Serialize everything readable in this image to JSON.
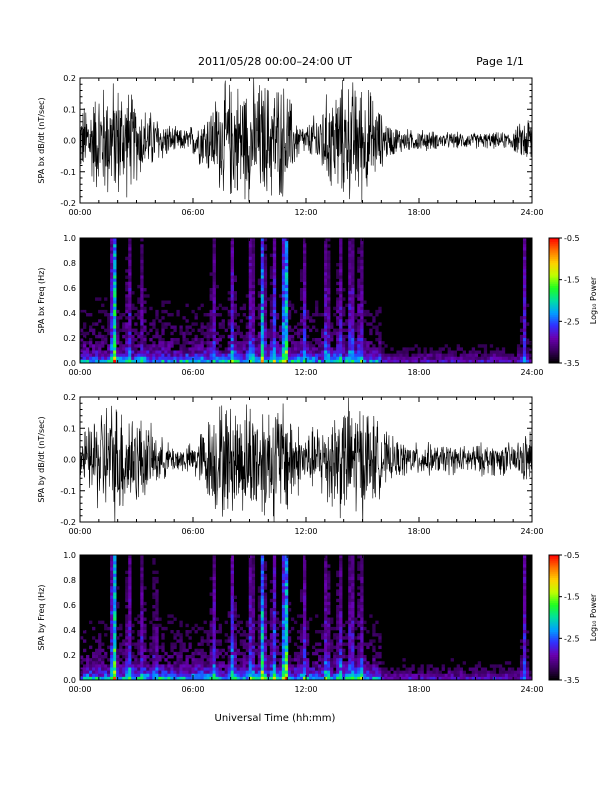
{
  "header": {
    "title": "2011/05/28  00:00–24:00 UT",
    "page": "Page 1/1"
  },
  "x_axis_title": "Universal Time (hh:mm)",
  "colorbar": {
    "label": "Log₁₀ Power",
    "ticks": [
      "-0.5",
      "-1.5",
      "-2.5",
      "-3.5"
    ],
    "range": [
      -3.5,
      -0.5
    ],
    "colormap": [
      "#000000",
      "#3a0060",
      "#6a00b0",
      "#3030ff",
      "#00a0ff",
      "#00e0a0",
      "#20ff20",
      "#c0ff00",
      "#ffd000",
      "#ff7000",
      "#ff0000"
    ]
  },
  "chart_data": [
    {
      "type": "line",
      "name": "bx-waveform",
      "ylabel": "SPA bx dB/dt (nT/sec)",
      "xlim": [
        0,
        24
      ],
      "ylim": [
        -0.2,
        0.2
      ],
      "xticks": [
        "00:00",
        "06:00",
        "12:00",
        "18:00",
        "24:00"
      ],
      "yticks": [
        "0.2",
        "0.1",
        "0.0",
        "-0.1",
        "-0.2"
      ],
      "envelope": {
        "hours": [
          0,
          0.5,
          1,
          1.5,
          2,
          2.5,
          3,
          3.5,
          4,
          4.5,
          5,
          5.5,
          6,
          6.5,
          7,
          7.5,
          8,
          8.5,
          9,
          9.5,
          10,
          10.5,
          11,
          11.5,
          12,
          12.5,
          13,
          13.5,
          14,
          14.5,
          15,
          15.5,
          16,
          16.5,
          17,
          17.5,
          18,
          18.5,
          19,
          19.5,
          20,
          20.5,
          21,
          21.5,
          22,
          22.5,
          23,
          23.5,
          24
        ],
        "amplitude": [
          0.12,
          0.15,
          0.2,
          0.22,
          0.22,
          0.2,
          0.15,
          0.12,
          0.1,
          0.07,
          0.05,
          0.04,
          0.06,
          0.1,
          0.14,
          0.2,
          0.22,
          0.22,
          0.22,
          0.22,
          0.22,
          0.22,
          0.2,
          0.08,
          0.05,
          0.1,
          0.16,
          0.2,
          0.22,
          0.22,
          0.22,
          0.18,
          0.1,
          0.06,
          0.05,
          0.04,
          0.04,
          0.04,
          0.03,
          0.03,
          0.03,
          0.03,
          0.03,
          0.03,
          0.03,
          0.03,
          0.04,
          0.07,
          0.12
        ]
      }
    },
    {
      "type": "heatmap",
      "name": "bx-spectrogram",
      "ylabel": "SPA bx Freq (Hz)",
      "xlim": [
        0,
        24
      ],
      "ylim": [
        0,
        1.0
      ],
      "xticks": [
        "00:00",
        "06:00",
        "12:00",
        "18:00",
        "24:00"
      ],
      "yticks": [
        "1.0",
        "0.8",
        "0.6",
        "0.4",
        "0.2",
        "0.0"
      ],
      "zlim": [
        -3.5,
        -0.5
      ],
      "bursts": [
        {
          "hour": 1.8,
          "power": -1.5
        },
        {
          "hour": 2.6,
          "power": -2.8
        },
        {
          "hour": 3.3,
          "power": -3.0
        },
        {
          "hour": 7.1,
          "power": -2.9
        },
        {
          "hour": 8.1,
          "power": -2.7
        },
        {
          "hour": 9.1,
          "power": -2.6
        },
        {
          "hour": 9.7,
          "power": -2.0
        },
        {
          "hour": 10.3,
          "power": -2.6
        },
        {
          "hour": 10.9,
          "power": -1.4
        },
        {
          "hour": 11.9,
          "power": -2.8
        },
        {
          "hour": 13.1,
          "power": -2.7
        },
        {
          "hour": 13.8,
          "power": -2.8
        },
        {
          "hour": 14.4,
          "power": -2.6
        },
        {
          "hour": 14.9,
          "power": -2.8
        },
        {
          "hour": 23.6,
          "power": -2.6
        }
      ]
    },
    {
      "type": "line",
      "name": "by-waveform",
      "ylabel": "SPA by dB/dt (nT/sec)",
      "xlim": [
        0,
        24
      ],
      "ylim": [
        -0.2,
        0.2
      ],
      "xticks": [
        "00:00",
        "06:00",
        "12:00",
        "18:00",
        "24:00"
      ],
      "yticks": [
        "0.2",
        "0.1",
        "0.0",
        "-0.1",
        "-0.2"
      ],
      "envelope": {
        "hours": [
          0,
          0.5,
          1,
          1.5,
          2,
          2.5,
          3,
          3.5,
          4,
          4.5,
          5,
          5.5,
          6,
          6.5,
          7,
          7.5,
          8,
          8.5,
          9,
          9.5,
          10,
          10.5,
          11,
          11.5,
          12,
          12.5,
          13,
          13.5,
          14,
          14.5,
          15,
          15.5,
          16,
          16.5,
          17,
          17.5,
          18,
          18.5,
          19,
          19.5,
          20,
          20.5,
          21,
          21.5,
          22,
          22.5,
          23,
          23.5,
          24
        ],
        "amplitude": [
          0.1,
          0.12,
          0.2,
          0.22,
          0.22,
          0.2,
          0.18,
          0.14,
          0.1,
          0.07,
          0.05,
          0.05,
          0.06,
          0.12,
          0.18,
          0.22,
          0.2,
          0.2,
          0.22,
          0.22,
          0.22,
          0.22,
          0.22,
          0.14,
          0.1,
          0.12,
          0.16,
          0.2,
          0.22,
          0.22,
          0.22,
          0.18,
          0.12,
          0.08,
          0.07,
          0.06,
          0.06,
          0.06,
          0.05,
          0.06,
          0.05,
          0.05,
          0.06,
          0.06,
          0.06,
          0.06,
          0.06,
          0.08,
          0.12
        ]
      }
    },
    {
      "type": "heatmap",
      "name": "by-spectrogram",
      "ylabel": "SPA by Freq (Hz)",
      "xlim": [
        0,
        24
      ],
      "ylim": [
        0,
        1.0
      ],
      "xticks": [
        "00:00",
        "06:00",
        "12:00",
        "18:00",
        "24:00"
      ],
      "yticks": [
        "1.0",
        "0.8",
        "0.6",
        "0.4",
        "0.2",
        "0.0"
      ],
      "zlim": [
        -3.5,
        -0.5
      ],
      "bursts": [
        {
          "hour": 1.8,
          "power": -1.5
        },
        {
          "hour": 2.6,
          "power": -2.7
        },
        {
          "hour": 3.3,
          "power": -2.9
        },
        {
          "hour": 4.0,
          "power": -3.0
        },
        {
          "hour": 7.1,
          "power": -2.8
        },
        {
          "hour": 8.1,
          "power": -2.6
        },
        {
          "hour": 9.1,
          "power": -2.6
        },
        {
          "hour": 9.7,
          "power": -1.9
        },
        {
          "hour": 10.3,
          "power": -2.6
        },
        {
          "hour": 10.9,
          "power": -1.4
        },
        {
          "hour": 11.9,
          "power": -2.8
        },
        {
          "hour": 13.1,
          "power": -2.7
        },
        {
          "hour": 13.8,
          "power": -2.8
        },
        {
          "hour": 14.4,
          "power": -2.6
        },
        {
          "hour": 14.9,
          "power": -2.8
        },
        {
          "hour": 23.6,
          "power": -2.6
        }
      ]
    }
  ]
}
